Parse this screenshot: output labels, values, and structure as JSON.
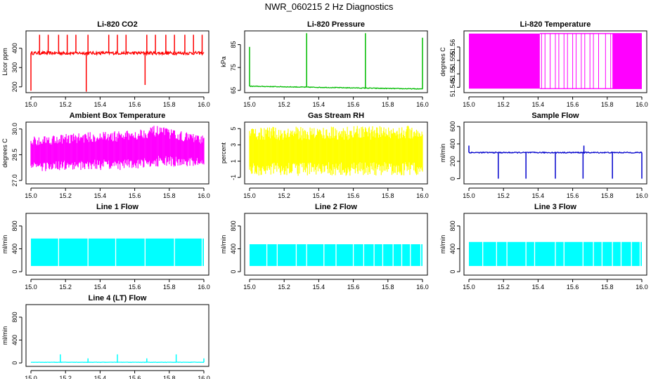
{
  "title": "NWR_060215  2 Hz Diagnostics",
  "chart_data": [
    {
      "type": "line",
      "title": "Li-820 CO2",
      "ylabel": "Licor ppm",
      "color": "#ff0000",
      "style": "line",
      "xlim": [
        15.0,
        16.0
      ],
      "ylim": [
        170,
        490
      ],
      "xticks": [
        15.0,
        15.2,
        15.4,
        15.6,
        15.8,
        16.0
      ],
      "xtick_labels": [
        "15.0",
        "15.2",
        "15.4",
        "15.6",
        "15.8",
        "16.0"
      ],
      "yticks": [
        200,
        300,
        400
      ],
      "ytick_labels": [
        "200",
        "300",
        "400"
      ],
      "baseline": 375,
      "noise": 8,
      "spikes": [
        {
          "x": 15.0,
          "y": 180
        },
        {
          "x": 15.05,
          "y": 470
        },
        {
          "x": 15.1,
          "y": 470
        },
        {
          "x": 15.16,
          "y": 470
        },
        {
          "x": 15.21,
          "y": 470
        },
        {
          "x": 15.26,
          "y": 470
        },
        {
          "x": 15.32,
          "y": 175
        },
        {
          "x": 15.33,
          "y": 470
        },
        {
          "x": 15.45,
          "y": 470
        },
        {
          "x": 15.5,
          "y": 470
        },
        {
          "x": 15.55,
          "y": 470
        },
        {
          "x": 15.66,
          "y": 210
        },
        {
          "x": 15.67,
          "y": 470
        },
        {
          "x": 15.72,
          "y": 470
        },
        {
          "x": 15.78,
          "y": 470
        },
        {
          "x": 15.83,
          "y": 470
        },
        {
          "x": 15.89,
          "y": 470
        },
        {
          "x": 15.94,
          "y": 470
        },
        {
          "x": 15.99,
          "y": 470
        }
      ]
    },
    {
      "type": "line",
      "title": "Li-820 Pressure",
      "ylabel": "kPa",
      "color": "#00bb00",
      "style": "line",
      "xlim": [
        15.0,
        16.0
      ],
      "ylim": [
        64,
        91
      ],
      "xticks": [
        15.0,
        15.2,
        15.4,
        15.6,
        15.8,
        16.0
      ],
      "xtick_labels": [
        "15.0",
        "15.2",
        "15.4",
        "15.6",
        "15.8",
        "16.0"
      ],
      "yticks": [
        65,
        75,
        85
      ],
      "ytick_labels": [
        "65",
        "75",
        "85"
      ],
      "baseline": [
        [
          15.0,
          66.8
        ],
        [
          16.0,
          65.6
        ]
      ],
      "noise": 0.15,
      "spikes": [
        {
          "x": 15.0,
          "y": 84
        },
        {
          "x": 15.33,
          "y": 90
        },
        {
          "x": 15.67,
          "y": 90
        },
        {
          "x": 16.0,
          "y": 88
        }
      ]
    },
    {
      "type": "line",
      "title": "Li-820 Temperature",
      "ylabel": "degrees C",
      "color": "#ff00ff",
      "style": "square",
      "xlim": [
        15.0,
        16.0
      ],
      "ylim": [
        51.543,
        51.566
      ],
      "xticks": [
        15.0,
        15.2,
        15.4,
        15.6,
        15.8,
        16.0
      ],
      "xtick_labels": [
        "15.0",
        "15.2",
        "15.4",
        "15.6",
        "15.8",
        "16.0"
      ],
      "yticks": [
        51.545,
        51.55,
        51.555,
        51.56
      ],
      "ytick_labels": [
        "51.545",
        "51.55",
        "51.555",
        "51.56"
      ],
      "low": 51.5445,
      "high": 51.565,
      "dense_until": 15.41,
      "lines": [
        15.42,
        15.44,
        15.47,
        15.5,
        15.52,
        15.55,
        15.57,
        15.6,
        15.62,
        15.65,
        15.67,
        15.7,
        15.72,
        15.75,
        15.79,
        15.82
      ]
    },
    {
      "type": "line",
      "title": "Ambient Box Temperature",
      "ylabel": "degrees C",
      "color": "#ff00ff",
      "style": "band",
      "xlim": [
        15.0,
        16.0
      ],
      "ylim": [
        26.8,
        30.4
      ],
      "xticks": [
        15.0,
        15.2,
        15.4,
        15.6,
        15.8,
        16.0
      ],
      "xtick_labels": [
        "15.0",
        "15.2",
        "15.4",
        "15.6",
        "15.8",
        "16.0"
      ],
      "yticks": [
        27.0,
        28.5,
        30.0
      ],
      "ytick_labels": [
        "27.0",
        "28.5",
        "30.0"
      ],
      "envelope": [
        [
          15.0,
          27.5,
          29.6
        ],
        [
          15.3,
          27.6,
          29.8
        ],
        [
          15.55,
          27.6,
          29.9
        ],
        [
          15.72,
          27.8,
          30.2
        ],
        [
          16.0,
          27.8,
          29.6
        ]
      ]
    },
    {
      "type": "line",
      "title": "Gas Stream RH",
      "ylabel": "percent",
      "color": "#ffff00",
      "style": "band",
      "xlim": [
        15.0,
        16.0
      ],
      "ylim": [
        -1.8,
        5.8
      ],
      "xticks": [
        15.0,
        15.2,
        15.4,
        15.6,
        15.8,
        16.0
      ],
      "xtick_labels": [
        "15.0",
        "15.2",
        "15.4",
        "15.6",
        "15.8",
        "16.0"
      ],
      "yticks": [
        -1,
        1,
        3,
        5
      ],
      "ytick_labels": [
        "-1",
        "1",
        "3",
        "5"
      ],
      "envelope": [
        [
          15.0,
          -0.8,
          5.2
        ],
        [
          16.0,
          -0.8,
          5.4
        ]
      ]
    },
    {
      "type": "line",
      "title": "Sample Flow",
      "ylabel": "ml/min",
      "color": "#0000cc",
      "style": "line",
      "xlim": [
        15.0,
        16.0
      ],
      "ylim": [
        -60,
        650
      ],
      "xticks": [
        15.0,
        15.2,
        15.4,
        15.6,
        15.8,
        16.0
      ],
      "xtick_labels": [
        "15.0",
        "15.2",
        "15.4",
        "15.6",
        "15.8",
        "16.0"
      ],
      "yticks": [
        0,
        200,
        400,
        600
      ],
      "ytick_labels": [
        "0",
        "200",
        "400",
        "600"
      ],
      "baseline": 300,
      "noise": 6,
      "spikes": [
        {
          "x": 15.0,
          "y": 380
        },
        {
          "x": 15.17,
          "y": 0
        },
        {
          "x": 15.33,
          "y": 0
        },
        {
          "x": 15.5,
          "y": 0
        },
        {
          "x": 15.66,
          "y": 0
        },
        {
          "x": 15.665,
          "y": 380
        },
        {
          "x": 15.83,
          "y": 0
        },
        {
          "x": 16.0,
          "y": 0
        }
      ]
    },
    {
      "type": "line",
      "title": "Line 1 Flow",
      "ylabel": "ml/min",
      "color": "#00ffff",
      "style": "bars",
      "xlim": [
        15.0,
        16.0
      ],
      "ylim": [
        -60,
        1020
      ],
      "xticks": [
        15.0,
        15.2,
        15.4,
        15.6,
        15.8,
        16.0
      ],
      "xtick_labels": [
        "15.0",
        "15.2",
        "15.4",
        "15.6",
        "15.8",
        "16.0"
      ],
      "yticks": [
        0,
        400,
        800
      ],
      "ytick_labels": [
        "0",
        "400",
        "800"
      ],
      "low": 100,
      "high": 580,
      "gaps": [
        15.16,
        15.33,
        15.49,
        15.66,
        15.83,
        15.99
      ]
    },
    {
      "type": "line",
      "title": "Line 2 Flow",
      "ylabel": "ml/min",
      "color": "#00ffff",
      "style": "bars",
      "xlim": [
        15.0,
        16.0
      ],
      "ylim": [
        -60,
        1020
      ],
      "xticks": [
        15.0,
        15.2,
        15.4,
        15.6,
        15.8,
        16.0
      ],
      "xtick_labels": [
        "15.0",
        "15.2",
        "15.4",
        "15.6",
        "15.8",
        "16.0"
      ],
      "yticks": [
        0,
        400,
        800
      ],
      "ytick_labels": [
        "0",
        "400",
        "800"
      ],
      "low": 100,
      "high": 480,
      "gaps": [
        15.1,
        15.16,
        15.27,
        15.33,
        15.43,
        15.5,
        15.6,
        15.66,
        15.72,
        15.77,
        15.83,
        15.88,
        15.93,
        15.99
      ]
    },
    {
      "type": "line",
      "title": "Line 3 Flow",
      "ylabel": "ml/min",
      "color": "#00ffff",
      "style": "bars",
      "xlim": [
        15.0,
        16.0
      ],
      "ylim": [
        -60,
        1020
      ],
      "xticks": [
        15.0,
        15.2,
        15.4,
        15.6,
        15.8,
        16.0
      ],
      "xtick_labels": [
        "15.0",
        "15.2",
        "15.4",
        "15.6",
        "15.8",
        "16.0"
      ],
      "yticks": [
        0,
        400,
        800
      ],
      "ytick_labels": [
        "0",
        "400",
        "800"
      ],
      "low": 100,
      "high": 520,
      "gaps": [
        15.08,
        15.16,
        15.22,
        15.33,
        15.38,
        15.5,
        15.55,
        15.66,
        15.72,
        15.77,
        15.83,
        15.88,
        15.94,
        15.99
      ]
    },
    {
      "type": "line",
      "title": "Line 4 (LT) Flow",
      "ylabel": "ml/min",
      "color": "#00ffff",
      "style": "line",
      "xlim": [
        15.0,
        16.0
      ],
      "ylim": [
        -60,
        1020
      ],
      "xticks": [
        15.0,
        15.2,
        15.4,
        15.6,
        15.8,
        16.0
      ],
      "xtick_labels": [
        "15.0",
        "15.2",
        "15.4",
        "15.6",
        "15.8",
        "16.0"
      ],
      "yticks": [
        0,
        400,
        800
      ],
      "ytick_labels": [
        "0",
        "400",
        "800"
      ],
      "baseline": 12,
      "noise": 3,
      "spikes": [
        {
          "x": 15.17,
          "y": 150
        },
        {
          "x": 15.33,
          "y": 80
        },
        {
          "x": 15.5,
          "y": 150
        },
        {
          "x": 15.67,
          "y": 80
        },
        {
          "x": 15.84,
          "y": 150
        },
        {
          "x": 16.0,
          "y": 80
        }
      ]
    }
  ]
}
